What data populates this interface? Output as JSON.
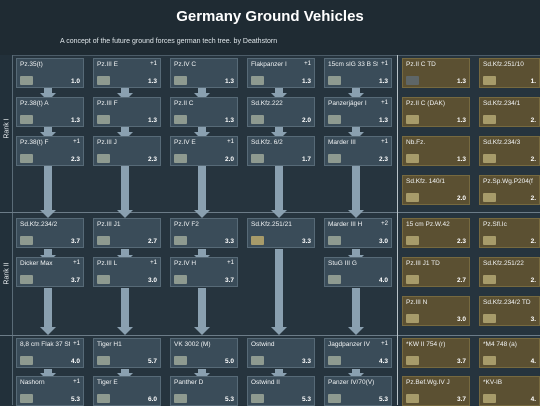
{
  "header": {
    "title": "Germany Ground Vehicles",
    "subtitle": "A concept of the future ground forces german tech tree. by Deathstorn"
  },
  "ranks": [
    "Rank I",
    "Rank II"
  ],
  "colors": {
    "bg": "#1f2b33",
    "cell": "#3a4c59",
    "premium": "#5b5032",
    "arrow": "#8aa0b0"
  },
  "vehicles": [
    {
      "name": "Pz.35(t)",
      "br": "1.0",
      "plus": ""
    },
    {
      "name": "Pz.III E",
      "br": "1.3",
      "plus": "+1"
    },
    {
      "name": "Pz.IV C",
      "br": "1.3",
      "plus": ""
    },
    {
      "name": "Flakpanzer I",
      "br": "1.3",
      "plus": "+1"
    },
    {
      "name": "15cm sIG 33 B Sfl",
      "br": "1.3",
      "plus": "+1"
    },
    {
      "name": "Pz.38(t) A",
      "br": "1.3",
      "plus": ""
    },
    {
      "name": "Pz.III F",
      "br": "1.3",
      "plus": ""
    },
    {
      "name": "Pz.II C",
      "br": "1.3",
      "plus": ""
    },
    {
      "name": "Sd.Kfz.222",
      "br": "2.0",
      "plus": ""
    },
    {
      "name": "Panzerjäger I",
      "br": "1.3",
      "plus": "+1"
    },
    {
      "name": "Pz.38(t) F",
      "br": "2.3",
      "plus": "+1"
    },
    {
      "name": "Pz.III J",
      "br": "2.3",
      "plus": ""
    },
    {
      "name": "Pz.IV E",
      "br": "2.0",
      "plus": "+1"
    },
    {
      "name": "Sd.Kfz. 6/2",
      "br": "1.7",
      "plus": ""
    },
    {
      "name": "Marder III",
      "br": "2.3",
      "plus": "+1"
    },
    {
      "name": "Sd.Kfz.234/2",
      "br": "3.7",
      "plus": ""
    },
    {
      "name": "Pz.III J1",
      "br": "2.7",
      "plus": ""
    },
    {
      "name": "Pz.IV F2",
      "br": "3.3",
      "plus": ""
    },
    {
      "name": "Sd.Kfz.251/21",
      "br": "3.3",
      "plus": ""
    },
    {
      "name": "Marder III H",
      "br": "3.0",
      "plus": "+2"
    },
    {
      "name": "Dicker Max",
      "br": "3.7",
      "plus": "+1"
    },
    {
      "name": "Pz.III L",
      "br": "3.0",
      "plus": "+1"
    },
    {
      "name": "Pz.IV H",
      "br": "3.7",
      "plus": "+1"
    },
    {
      "name": "",
      "br": "",
      "plus": ""
    },
    {
      "name": "StuG III G",
      "br": "4.0",
      "plus": ""
    },
    {
      "name": "8,8 cm Flak 37 Sfl",
      "br": "4.0",
      "plus": "+1"
    },
    {
      "name": "Tiger H1",
      "br": "5.7",
      "plus": ""
    },
    {
      "name": "VK 3002 (M)",
      "br": "5.0",
      "plus": ""
    },
    {
      "name": "Ostwind",
      "br": "3.3",
      "plus": ""
    },
    {
      "name": "Jagdpanzer IV",
      "br": "4.3",
      "plus": "+1"
    },
    {
      "name": "Nashorn",
      "br": "5.3",
      "plus": "+1"
    },
    {
      "name": "Tiger E",
      "br": "6.0",
      "plus": ""
    },
    {
      "name": "Panther D",
      "br": "5.3",
      "plus": ""
    },
    {
      "name": "Ostwind II",
      "br": "5.3",
      "plus": ""
    },
    {
      "name": "Panzer IV/70(V)",
      "br": "5.3",
      "plus": ""
    }
  ],
  "premium_vehicles": [
    {
      "name": "Pz.II C TD",
      "br": "1.3",
      "plus": ""
    },
    {
      "name": "Sd.Kfz.251/10",
      "br": "1.",
      "plus": ""
    },
    {
      "name": "Pz.II C (DAK)",
      "br": "1.3",
      "plus": ""
    },
    {
      "name": "Sd.Kfz.234/1",
      "br": "2.",
      "plus": ""
    },
    {
      "name": "Nb.Fz.",
      "br": "1.3",
      "plus": ""
    },
    {
      "name": "Sd.Kfz.234/3",
      "br": "2.",
      "plus": ""
    },
    {
      "name": "Sd.Kfz. 140/1",
      "br": "2.0",
      "plus": ""
    },
    {
      "name": "Pz.Sp.Wg.P204(f) KwK",
      "br": "2.",
      "plus": ""
    },
    {
      "name": "15 cm Pz.W.42",
      "br": "2.3",
      "plus": ""
    },
    {
      "name": "Pz.Sfl.Ic",
      "br": "2.",
      "plus": ""
    },
    {
      "name": "Pz.III J1 TD",
      "br": "2.7",
      "plus": ""
    },
    {
      "name": "Sd.Kfz.251/22",
      "br": "2.",
      "plus": ""
    },
    {
      "name": "Pz.III N",
      "br": "3.0",
      "plus": ""
    },
    {
      "name": "Sd.Kfz.234/2 TD",
      "br": "3.",
      "plus": ""
    },
    {
      "name": "*KW II 754 (r)",
      "br": "3.7",
      "plus": ""
    },
    {
      "name": "*M4 748 (a)",
      "br": "4.",
      "plus": ""
    },
    {
      "name": "Pz.Bef.Wg.IV J",
      "br": "3.7",
      "plus": ""
    },
    {
      "name": "*KV-IB",
      "br": "4.",
      "plus": ""
    }
  ]
}
